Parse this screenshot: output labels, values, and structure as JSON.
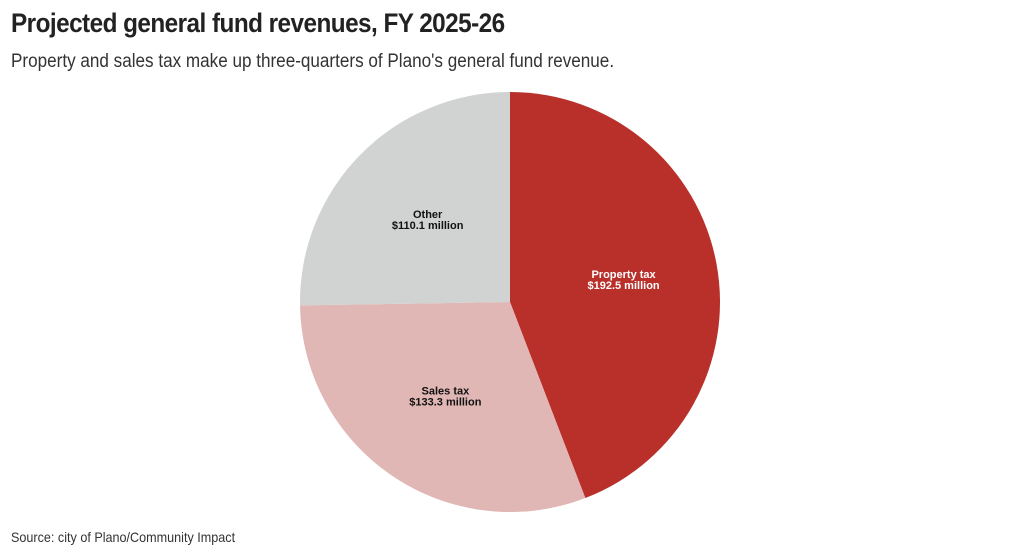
{
  "header": {
    "title": "Projected general fund revenues, FY 2025-26",
    "subtitle": "Property and sales tax make up three-quarters of Plano's general fund revenue."
  },
  "footer": {
    "source": "Source: city of Plano/Community Impact"
  },
  "chart_data": {
    "type": "pie",
    "title": "Projected general fund revenues, FY 2025-26",
    "subtitle": "Property and sales tax make up three-quarters of Plano's general fund revenue.",
    "unit": "million",
    "start_angle": "12 o'clock",
    "direction": "clockwise",
    "slices": [
      {
        "name": "Property tax",
        "value": 192.5,
        "value_label": "$192.5 million",
        "color": "#b9302b",
        "label_color": "#ffffff"
      },
      {
        "name": "Sales tax",
        "value": 133.3,
        "value_label": "$133.3 million",
        "color": "#e0b7b5",
        "label_color": "#111111"
      },
      {
        "name": "Other",
        "value": 110.1,
        "value_label": "$110.1 million",
        "color": "#d1d3d2",
        "label_color": "#111111"
      }
    ]
  }
}
